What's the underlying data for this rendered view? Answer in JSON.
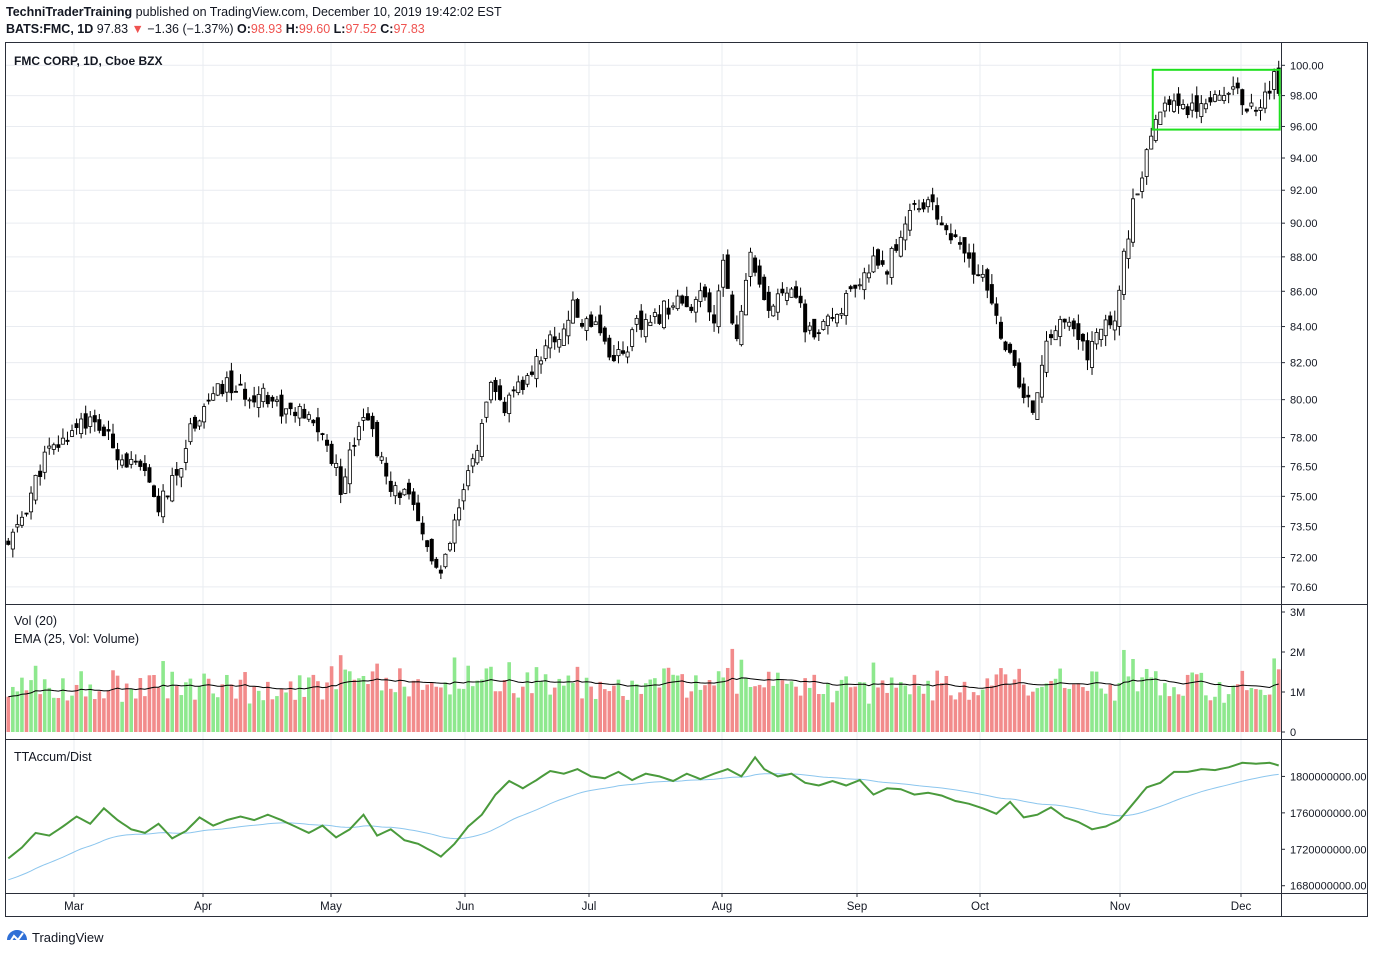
{
  "header": {
    "author": "TechniTraderTraining",
    "published_text": "published on TradingView.com, December 10, 2019 19:42:02 EST",
    "symbol": "BATS:FMC, 1D",
    "last": "97.83",
    "change": "−1.36 (−1.37%)",
    "o_label": "O:",
    "o": "98.93",
    "h_label": "H:",
    "h": "99.60",
    "l_label": "L:",
    "l": "97.52",
    "c_label": "C:",
    "c": "97.83"
  },
  "panes": {
    "price_title": "FMC CORP, 1D, Cboe BZX",
    "volume_title": "Vol (20)",
    "ema_title": "EMA (25, Vol: Volume)",
    "accum_title": "TTAccum/Dist"
  },
  "brand": {
    "name": "TradingView"
  },
  "colors": {
    "up": "#ffffff",
    "down": "#000000",
    "wick": "#000000",
    "vol_up": "#8ee88e",
    "vol_down": "#f28b8b",
    "ema": "#000000",
    "accum": "#4a9a3c",
    "accum_signal": "#8cc6ee",
    "box": "#1fe01f",
    "grid": "#e9ecf1"
  },
  "chart_data": [
    {
      "type": "candlestick",
      "title": "FMC CORP, 1D, Cboe BZX",
      "x_ticks": [
        "Mar",
        "Apr",
        "May",
        "Jun",
        "Jul",
        "Aug",
        "Sep",
        "Oct",
        "Nov",
        "Dec"
      ],
      "y_ticks": [
        "100.00",
        "98.00",
        "96.00",
        "94.00",
        "92.00",
        "90.00",
        "88.00",
        "86.00",
        "84.00",
        "82.00",
        "80.00",
        "78.00",
        "76.50",
        "75.00",
        "73.50",
        "72.00",
        "70.60"
      ],
      "ylim": [
        69.8,
        101.5
      ],
      "scale": "log",
      "anchors": [
        [
          0,
          72.5
        ],
        [
          4,
          74.5
        ],
        [
          8,
          77
        ],
        [
          12,
          77.8
        ],
        [
          16,
          79
        ],
        [
          20,
          78.5
        ],
        [
          25,
          77
        ],
        [
          30,
          76
        ],
        [
          33,
          74.5
        ],
        [
          37,
          76
        ],
        [
          40,
          78.5
        ],
        [
          44,
          80
        ],
        [
          48,
          80.8
        ],
        [
          52,
          80.2
        ],
        [
          56,
          80.5
        ],
        [
          60,
          79.5
        ],
        [
          64,
          79.2
        ],
        [
          68,
          78.5
        ],
        [
          71,
          77
        ],
        [
          73,
          75.5
        ],
        [
          76,
          78
        ],
        [
          78,
          79.5
        ],
        [
          81,
          77.5
        ],
        [
          84,
          75
        ],
        [
          87,
          75.5
        ],
        [
          90,
          73.5
        ],
        [
          93,
          72
        ],
        [
          95,
          71
        ],
        [
          98,
          73.5
        ],
        [
          101,
          76
        ],
        [
          104,
          78.5
        ],
        [
          106,
          80.5
        ],
        [
          109,
          79.6
        ],
        [
          112,
          80.5
        ],
        [
          115,
          81.5
        ],
        [
          118,
          83
        ],
        [
          121,
          83.5
        ],
        [
          124,
          85
        ],
        [
          126,
          84.2
        ],
        [
          129,
          84.5
        ],
        [
          132,
          82.5
        ],
        [
          135,
          82.5
        ],
        [
          138,
          84
        ],
        [
          141,
          84
        ],
        [
          144,
          85
        ],
        [
          147,
          85.6
        ],
        [
          150,
          84.5
        ],
        [
          152,
          86
        ],
        [
          155,
          84
        ],
        [
          157,
          88
        ],
        [
          160,
          83
        ],
        [
          163,
          88.5
        ],
        [
          165,
          86
        ],
        [
          167,
          84.5
        ],
        [
          169,
          86
        ],
        [
          172,
          86.5
        ],
        [
          175,
          84
        ],
        [
          178,
          83.5
        ],
        [
          181,
          84.5
        ],
        [
          184,
          85.5
        ],
        [
          187,
          86
        ],
        [
          190,
          88
        ],
        [
          193,
          87.5
        ],
        [
          195,
          88.5
        ],
        [
          198,
          91
        ],
        [
          201,
          91.2
        ],
        [
          204,
          90.6
        ],
        [
          207,
          89.2
        ],
        [
          210,
          88
        ],
        [
          213,
          87
        ],
        [
          215,
          86
        ],
        [
          217,
          84.5
        ],
        [
          219,
          83
        ],
        [
          221,
          81.5
        ],
        [
          223,
          80
        ],
        [
          225,
          79.5
        ],
        [
          227,
          82
        ],
        [
          229,
          83.5
        ],
        [
          231,
          84.5
        ],
        [
          233,
          84
        ],
        [
          235,
          83.2
        ],
        [
          237,
          82.5
        ],
        [
          239,
          83.5
        ],
        [
          241,
          84
        ],
        [
          243,
          84.6
        ],
        [
          245,
          88
        ],
        [
          247,
          91
        ],
        [
          249,
          93
        ],
        [
          251,
          95
        ],
        [
          253,
          97
        ],
        [
          255,
          98
        ],
        [
          258,
          97.2
        ],
        [
          261,
          97.5
        ],
        [
          264,
          98
        ],
        [
          267,
          98.5
        ],
        [
          270,
          98
        ],
        [
          273,
          97.2
        ],
        [
          276,
          98
        ],
        [
          278,
          99.2
        ],
        [
          279,
          97.8
        ]
      ],
      "box": {
        "x_from": 252,
        "x_to": 279,
        "y_from": 95.8,
        "y_to": 99.7
      }
    },
    {
      "type": "bar",
      "title": "Vol (20)",
      "series": [
        {
          "name": "EMA (25, Vol: Volume)",
          "note": "EMA line"
        }
      ],
      "y_ticks": [
        "3M",
        "2M",
        "1M",
        "0"
      ],
      "ylim": [
        0,
        3000000
      ]
    },
    {
      "type": "line",
      "title": "TTAccum/Dist",
      "y_ticks": [
        "1800000000.00",
        "1760000000.00",
        "1720000000.00",
        "1680000000.00"
      ],
      "ylim": [
        1672000000,
        1840000000
      ],
      "anchors": [
        [
          0,
          1710
        ],
        [
          3,
          1722
        ],
        [
          6,
          1738
        ],
        [
          9,
          1735
        ],
        [
          12,
          1745
        ],
        [
          15,
          1756
        ],
        [
          18,
          1748
        ],
        [
          21,
          1765
        ],
        [
          24,
          1752
        ],
        [
          27,
          1742
        ],
        [
          30,
          1738
        ],
        [
          33,
          1748
        ],
        [
          36,
          1732
        ],
        [
          39,
          1740
        ],
        [
          42,
          1755
        ],
        [
          45,
          1746
        ],
        [
          48,
          1752
        ],
        [
          51,
          1756
        ],
        [
          54,
          1752
        ],
        [
          57,
          1758
        ],
        [
          60,
          1752
        ],
        [
          63,
          1745
        ],
        [
          66,
          1738
        ],
        [
          69,
          1746
        ],
        [
          72,
          1733
        ],
        [
          75,
          1742
        ],
        [
          78,
          1758
        ],
        [
          81,
          1735
        ],
        [
          84,
          1742
        ],
        [
          87,
          1730
        ],
        [
          90,
          1726
        ],
        [
          93,
          1718
        ],
        [
          95,
          1712
        ],
        [
          98,
          1726
        ],
        [
          101,
          1745
        ],
        [
          104,
          1758
        ],
        [
          107,
          1780
        ],
        [
          110,
          1795
        ],
        [
          113,
          1787
        ],
        [
          116,
          1796
        ],
        [
          119,
          1806
        ],
        [
          122,
          1803
        ],
        [
          125,
          1808
        ],
        [
          128,
          1800
        ],
        [
          131,
          1798
        ],
        [
          134,
          1805
        ],
        [
          137,
          1796
        ],
        [
          140,
          1803
        ],
        [
          143,
          1800
        ],
        [
          146,
          1795
        ],
        [
          149,
          1803
        ],
        [
          152,
          1797
        ],
        [
          155,
          1803
        ],
        [
          158,
          1808
        ],
        [
          161,
          1800
        ],
        [
          164,
          1821
        ],
        [
          166,
          1808
        ],
        [
          169,
          1800
        ],
        [
          172,
          1803
        ],
        [
          175,
          1793
        ],
        [
          178,
          1790
        ],
        [
          181,
          1795
        ],
        [
          184,
          1790
        ],
        [
          187,
          1796
        ],
        [
          190,
          1780
        ],
        [
          193,
          1787
        ],
        [
          196,
          1786
        ],
        [
          199,
          1780
        ],
        [
          202,
          1782
        ],
        [
          205,
          1779
        ],
        [
          208,
          1773
        ],
        [
          211,
          1770
        ],
        [
          214,
          1765
        ],
        [
          217,
          1759
        ],
        [
          220,
          1772
        ],
        [
          223,
          1755
        ],
        [
          226,
          1758
        ],
        [
          229,
          1766
        ],
        [
          232,
          1755
        ],
        [
          235,
          1750
        ],
        [
          238,
          1742
        ],
        [
          241,
          1745
        ],
        [
          244,
          1752
        ],
        [
          247,
          1770
        ],
        [
          250,
          1788
        ],
        [
          253,
          1793
        ],
        [
          256,
          1805
        ],
        [
          259,
          1805
        ],
        [
          262,
          1808
        ],
        [
          265,
          1807
        ],
        [
          268,
          1810
        ],
        [
          271,
          1815
        ],
        [
          274,
          1814
        ],
        [
          277,
          1815
        ],
        [
          279,
          1812
        ]
      ]
    }
  ]
}
